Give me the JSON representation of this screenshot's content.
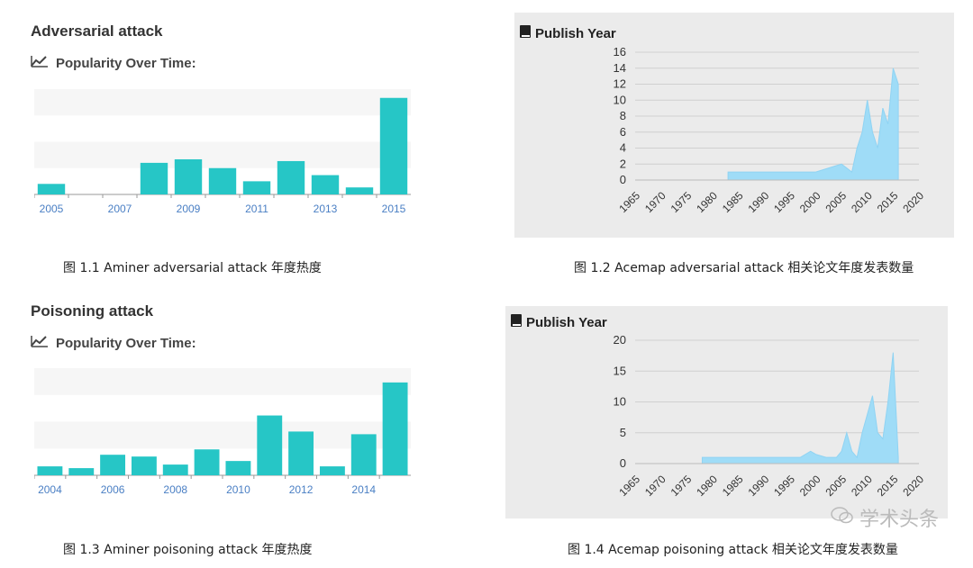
{
  "panel1": {
    "heading": "Adversarial attack",
    "subheading": "Popularity Over Time:",
    "caption": "图 1.1 Aminer adversarial attack 年度热度",
    "chart_data": {
      "type": "bar",
      "years": [
        "2005",
        "2006",
        "2007",
        "2008",
        "2009",
        "2010",
        "2011",
        "2012",
        "2013",
        "2014",
        "2015"
      ],
      "x_tick_labels": [
        "2005",
        "2007",
        "2009",
        "2011",
        "2013",
        "2015"
      ],
      "values": [
        12,
        0,
        0,
        36,
        40,
        30,
        15,
        38,
        22,
        8,
        110
      ],
      "ylim": [
        0,
        120
      ],
      "bar_color": "#26c6c6",
      "grid_bands": true
    }
  },
  "panel2": {
    "box_title": "Publish Year",
    "caption": "图 1.2 Acemap adversarial attack 相关论文年度发表数量",
    "chart_data": {
      "type": "area",
      "x": [
        1965,
        1982,
        1983,
        1998,
        2000,
        2004,
        2005,
        2006,
        2007,
        2008,
        2009,
        2010,
        2011,
        2012,
        2013,
        2014,
        2015,
        2016
      ],
      "y": [
        null,
        null,
        1,
        1,
        1,
        1.8,
        2,
        1.5,
        1,
        4,
        6,
        10,
        6,
        4,
        9,
        7,
        14,
        12
      ],
      "xlim": [
        1965,
        2020
      ],
      "x_ticks": [
        1965,
        1970,
        1975,
        1980,
        1985,
        1990,
        1995,
        2000,
        2005,
        2010,
        2015,
        2020
      ],
      "ylim": [
        0,
        16
      ],
      "y_ticks": [
        0,
        2,
        4,
        6,
        8,
        10,
        12,
        14,
        16
      ],
      "fill_color": "#9fdcf7"
    }
  },
  "panel3": {
    "heading": "Poisoning attack",
    "subheading": "Popularity Over Time:",
    "caption": "图 1.3 Aminer poisoning attack 年度热度",
    "chart_data": {
      "type": "bar",
      "years": [
        "2004",
        "2005",
        "2006",
        "2007",
        "2008",
        "2009",
        "2010",
        "2011",
        "2012",
        "2013",
        "2014",
        "2015"
      ],
      "x_tick_labels": [
        "2004",
        "2006",
        "2008",
        "2010",
        "2012",
        "2014"
      ],
      "values": [
        10,
        8,
        23,
        21,
        12,
        29,
        16,
        67,
        49,
        10,
        46,
        104
      ],
      "ylim": [
        0,
        120
      ],
      "bar_color": "#26c6c6",
      "grid_bands": true
    }
  },
  "panel4": {
    "box_title": "Publish Year",
    "caption": "图 1.4 Acemap poisoning attack 相关论文年度发表数量",
    "chart_data": {
      "type": "area",
      "x": [
        1965,
        1977,
        1978,
        1997,
        1999,
        2000,
        2002,
        2004,
        2005,
        2006,
        2007,
        2008,
        2009,
        2010,
        2011,
        2012,
        2013,
        2014,
        2015,
        2016
      ],
      "y": [
        null,
        null,
        1,
        1,
        2,
        1.5,
        1,
        1,
        2,
        5,
        2,
        1,
        5,
        8,
        11,
        5,
        4,
        10,
        18,
        1
      ],
      "xlim": [
        1965,
        2020
      ],
      "x_ticks": [
        1965,
        1970,
        1975,
        1980,
        1985,
        1990,
        1995,
        2000,
        2005,
        2010,
        2015,
        2020
      ],
      "ylim": [
        0,
        20
      ],
      "y_ticks": [
        0,
        5,
        10,
        15,
        20
      ],
      "fill_color": "#9fdcf7"
    }
  },
  "watermark": "学术头条"
}
